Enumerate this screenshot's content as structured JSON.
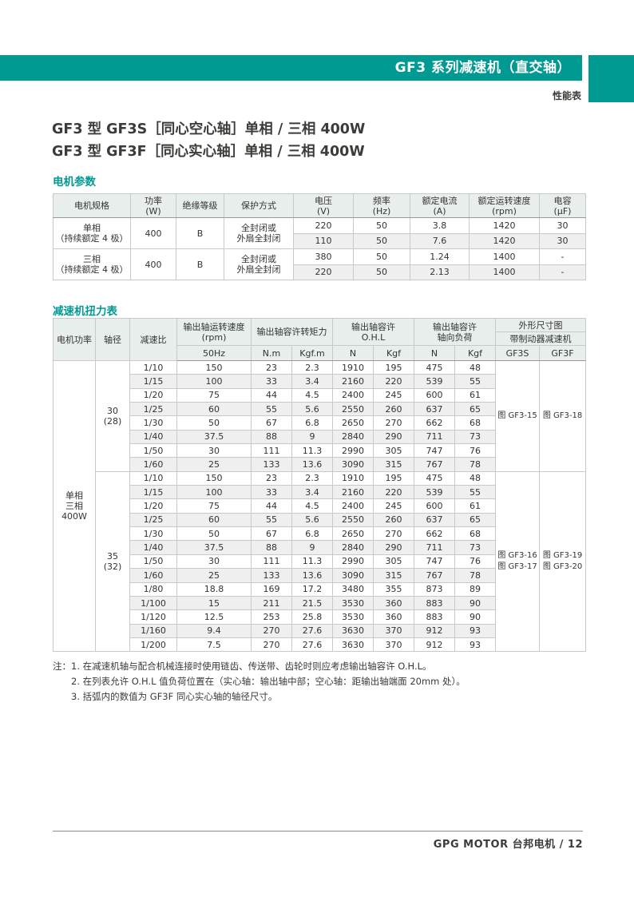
{
  "colors": {
    "teal": "#009A93",
    "table_header_bg": "#E8EEEB",
    "row_alt_bg": "#EFEFEF"
  },
  "page": {
    "header_bar_title": "GF3 系列减速机（直交轴）",
    "subheader": "性能表",
    "titles": [
      "GF3 型 GF3S［同心空心轴］单相 / 三相 400W",
      "GF3 型 GF3F［同心实心轴］单相 / 三相 400W"
    ],
    "footer": "GPG MOTOR 台邦电机  /  12"
  },
  "motor_params": {
    "section_title": "电机参数",
    "headers": [
      [
        "电机规格",
        ""
      ],
      [
        "功率",
        "(W)"
      ],
      [
        "绝缘等级",
        ""
      ],
      [
        "保护方式",
        ""
      ],
      [
        "电压",
        "(V)"
      ],
      [
        "频率",
        "(Hz)"
      ],
      [
        "额定电流",
        "(A)"
      ],
      [
        "额定运转速度",
        "(rpm)"
      ],
      [
        "电容",
        "(µF)"
      ]
    ],
    "groups": [
      {
        "spec": "单相\n（持续额定 4 极）",
        "power": "400",
        "insulation": "B",
        "protection": "全封闭或\n外扇全封闭",
        "rows": [
          [
            "220",
            "50",
            "3.8",
            "1420",
            "30"
          ],
          [
            "110",
            "50",
            "7.6",
            "1420",
            "30"
          ]
        ]
      },
      {
        "spec": "三相\n（持续额定 4 极）",
        "power": "400",
        "insulation": "B",
        "protection": "全封闭或\n外扇全封闭",
        "rows": [
          [
            "380",
            "50",
            "1.24",
            "1400",
            "-"
          ],
          [
            "220",
            "50",
            "2.13",
            "1400",
            "-"
          ]
        ]
      }
    ]
  },
  "torque_table": {
    "section_title": "减速机扭力表",
    "header": {
      "motor_power": "电机功率",
      "shaft_dia": "轴径",
      "ratio": "减速比",
      "speed_group": "输出轴运转速度\n(rpm)",
      "speed_sub": "50Hz",
      "torque_group": "输出轴容许转矩力",
      "torque_sub": [
        "N.m",
        "Kgf.m"
      ],
      "ohl_group": "输出轴容许\nO.H.L",
      "ohl_sub": [
        "N",
        "Kgf"
      ],
      "axial_group": "输出轴容许\n轴向负荷",
      "axial_sub": [
        "N",
        "Kgf"
      ],
      "dim_group": "外形尺寸图",
      "dim_group2": "带制动器减速机",
      "dim_sub": [
        "GF3S",
        "GF3F"
      ]
    },
    "motor_power_label": "单相\n三相\n400W",
    "blocks": [
      {
        "shaft": "30\n(28)",
        "gf3s": [
          "图 GF3-15"
        ],
        "gf3f": [
          "图 GF3-18"
        ],
        "rows": [
          [
            "1/10",
            "150",
            "23",
            "2.3",
            "1910",
            "195",
            "475",
            "48"
          ],
          [
            "1/15",
            "100",
            "33",
            "3.4",
            "2160",
            "220",
            "539",
            "55"
          ],
          [
            "1/20",
            "75",
            "44",
            "4.5",
            "2400",
            "245",
            "600",
            "61"
          ],
          [
            "1/25",
            "60",
            "55",
            "5.6",
            "2550",
            "260",
            "637",
            "65"
          ],
          [
            "1/30",
            "50",
            "67",
            "6.8",
            "2650",
            "270",
            "662",
            "68"
          ],
          [
            "1/40",
            "37.5",
            "88",
            "9",
            "2840",
            "290",
            "711",
            "73"
          ],
          [
            "1/50",
            "30",
            "111",
            "11.3",
            "2990",
            "305",
            "747",
            "76"
          ],
          [
            "1/60",
            "25",
            "133",
            "13.6",
            "3090",
            "315",
            "767",
            "78"
          ]
        ]
      },
      {
        "shaft": "35\n(32)",
        "gf3s": [
          "图 GF3-16",
          "图 GF3-17"
        ],
        "gf3f": [
          "图 GF3-19",
          "图 GF3-20"
        ],
        "rows": [
          [
            "1/10",
            "150",
            "23",
            "2.3",
            "1910",
            "195",
            "475",
            "48"
          ],
          [
            "1/15",
            "100",
            "33",
            "3.4",
            "2160",
            "220",
            "539",
            "55"
          ],
          [
            "1/20",
            "75",
            "44",
            "4.5",
            "2400",
            "245",
            "600",
            "61"
          ],
          [
            "1/25",
            "60",
            "55",
            "5.6",
            "2550",
            "260",
            "637",
            "65"
          ],
          [
            "1/30",
            "50",
            "67",
            "6.8",
            "2650",
            "270",
            "662",
            "68"
          ],
          [
            "1/40",
            "37.5",
            "88",
            "9",
            "2840",
            "290",
            "711",
            "73"
          ],
          [
            "1/50",
            "30",
            "111",
            "11.3",
            "2990",
            "305",
            "747",
            "76"
          ],
          [
            "1/60",
            "25",
            "133",
            "13.6",
            "3090",
            "315",
            "767",
            "78"
          ],
          [
            "1/80",
            "18.8",
            "169",
            "17.2",
            "3480",
            "355",
            "873",
            "89"
          ],
          [
            "1/100",
            "15",
            "211",
            "21.5",
            "3530",
            "360",
            "883",
            "90"
          ],
          [
            "1/120",
            "12.5",
            "253",
            "25.8",
            "3530",
            "360",
            "883",
            "90"
          ],
          [
            "1/160",
            "9.4",
            "270",
            "27.6",
            "3630",
            "370",
            "912",
            "93"
          ],
          [
            "1/200",
            "7.5",
            "270",
            "27.6",
            "3630",
            "370",
            "912",
            "93"
          ]
        ]
      }
    ]
  },
  "notes": {
    "label": "注：",
    "items": [
      "1. 在减速机轴与配合机械连接时使用链齿、传送带、齿轮时则应考虑输出轴容许 O.H.L。",
      "2. 在列表允许 O.H.L 值负荷位置在（实心轴：输出轴中部；空心轴：距输出轴端面 20mm 处）。",
      "3. 括弧内的数值为 GF3F 同心实心轴的轴径尺寸。"
    ]
  }
}
